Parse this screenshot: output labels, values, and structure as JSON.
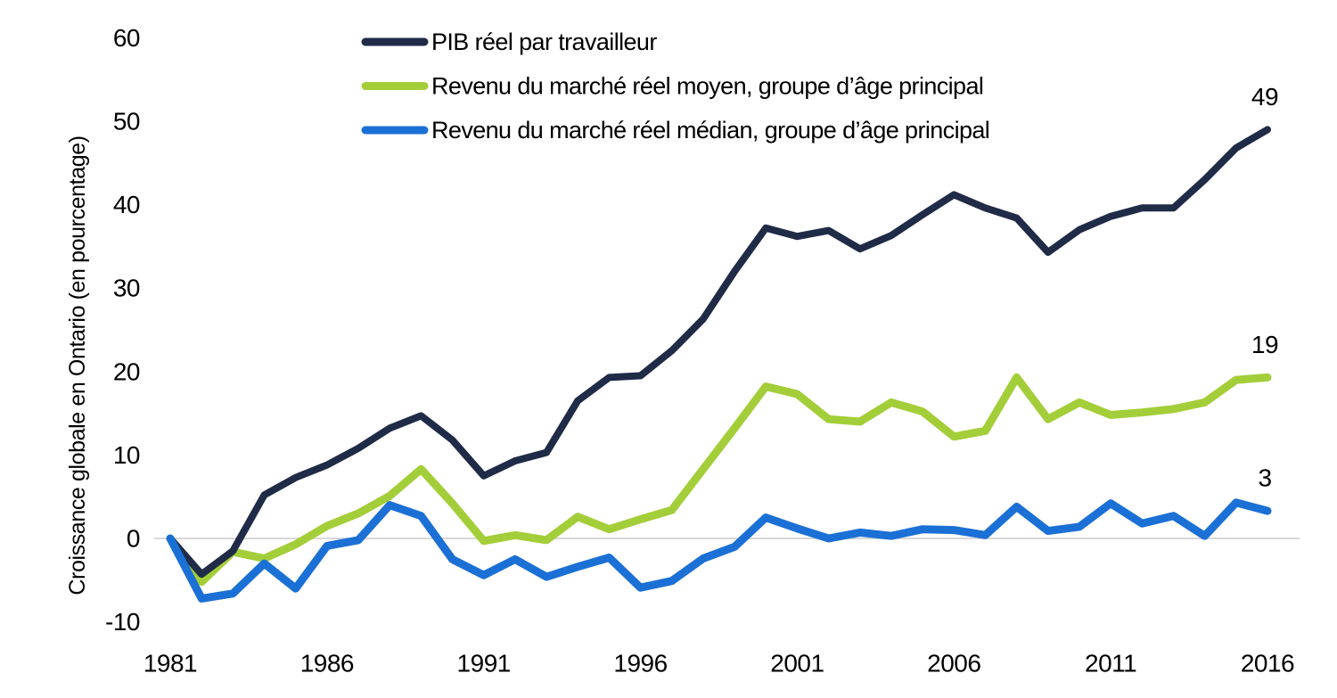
{
  "page": {
    "background": "#FFFFFF",
    "text_color": "#000000"
  },
  "chart_data": {
    "type": "line",
    "title": "",
    "xlabel": "",
    "ylabel": "Croissance globale en Ontario (en pourcentage)",
    "ylim": [
      -10,
      60
    ],
    "yticks": [
      60,
      50,
      40,
      30,
      20,
      10,
      0,
      -10
    ],
    "xticks": [
      1981,
      1986,
      1991,
      1996,
      2001,
      2006,
      2011,
      2016
    ],
    "grid": "zero-line-only",
    "zero_line_color": "#D8D8D8",
    "legend_position": "top-left",
    "x": [
      1981,
      1982,
      1983,
      1984,
      1985,
      1986,
      1987,
      1988,
      1989,
      1990,
      1991,
      1992,
      1993,
      1994,
      1995,
      1996,
      1997,
      1998,
      1999,
      2000,
      2001,
      2002,
      2003,
      2004,
      2005,
      2006,
      2007,
      2008,
      2009,
      2010,
      2011,
      2012,
      2013,
      2014,
      2015,
      2016
    ],
    "series": [
      {
        "name": "PIB réel par travailleur",
        "color": "#1F2B47",
        "end_label": "49",
        "values": [
          0,
          -4.3,
          -1.5,
          5.2,
          7.3,
          8.8,
          10.8,
          13.2,
          14.7,
          11.8,
          7.5,
          9.3,
          10.3,
          16.5,
          19.3,
          19.5,
          22.5,
          26.3,
          32,
          37.2,
          36.2,
          36.9,
          34.7,
          36.3,
          38.8,
          41.2,
          39.6,
          38.4,
          34.3,
          37,
          38.6,
          39.6,
          39.6,
          43,
          46.8,
          49
        ]
      },
      {
        "name": "Revenu du marché réel moyen, groupe d’âge principal",
        "color": "#A3CE39",
        "end_label": "19",
        "values": [
          0,
          -5.2,
          -1.6,
          -2.4,
          -0.7,
          1.5,
          3,
          5.1,
          8.3,
          4.2,
          -0.3,
          0.4,
          -0.2,
          2.6,
          1.1,
          2.3,
          3.4,
          8.3,
          13.2,
          18.2,
          17.3,
          14.3,
          14,
          16.3,
          15.2,
          12.2,
          12.9,
          19.3,
          14.3,
          16.3,
          14.8,
          15.1,
          15.5,
          16.3,
          19,
          19.3
        ]
      },
      {
        "name": "Revenu du marché réel médian, groupe d’âge principal",
        "color": "#1B70D6",
        "end_label": "3",
        "values": [
          0,
          -7.2,
          -6.6,
          -3,
          -6,
          -0.9,
          -0.2,
          4,
          2.7,
          -2.5,
          -4.4,
          -2.5,
          -4.6,
          -3.4,
          -2.3,
          -5.9,
          -5.1,
          -2.4,
          -1,
          2.5,
          1.2,
          0,
          0.7,
          0.3,
          1.1,
          1,
          0.4,
          3.8,
          0.9,
          1.4,
          4.2,
          1.8,
          2.7,
          0.3,
          4.3,
          3.3
        ]
      }
    ]
  }
}
